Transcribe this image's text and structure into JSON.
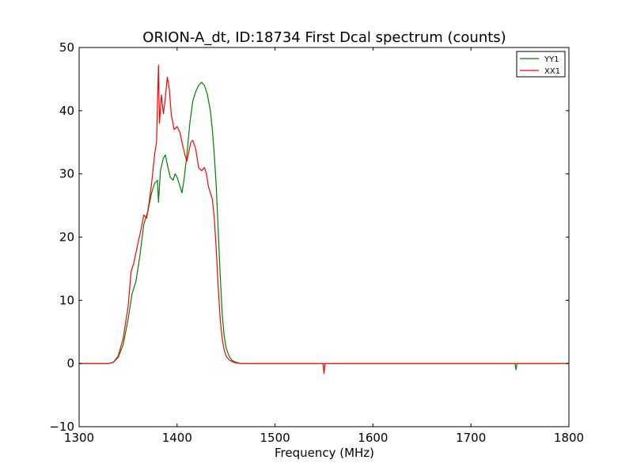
{
  "chart_data": {
    "type": "line",
    "title": "ORION-A_dt, ID:18734 First Dcal spectrum (counts)",
    "xlabel": "Frequency (MHz)",
    "ylabel": "",
    "xlim": [
      1300,
      1800
    ],
    "ylim": [
      -10,
      50
    ],
    "xticks": [
      "1300",
      "1400",
      "1500",
      "1600",
      "1700",
      "1800"
    ],
    "yticks": [
      "−10",
      "0",
      "10",
      "20",
      "30",
      "40",
      "50"
    ],
    "grid": false,
    "legend_position": "top-right",
    "series": [
      {
        "name": "YY1",
        "color": "#008000",
        "points": [
          [
            1300,
            0
          ],
          [
            1330,
            0
          ],
          [
            1335,
            0.2
          ],
          [
            1340,
            1
          ],
          [
            1345,
            3
          ],
          [
            1350,
            7
          ],
          [
            1354,
            11
          ],
          [
            1358,
            13
          ],
          [
            1362,
            17
          ],
          [
            1366,
            22
          ],
          [
            1370,
            24
          ],
          [
            1374,
            27
          ],
          [
            1377,
            28.5
          ],
          [
            1380,
            29
          ],
          [
            1381,
            25.5
          ],
          [
            1383,
            30.5
          ],
          [
            1386,
            32.5
          ],
          [
            1388,
            33
          ],
          [
            1390,
            31.5
          ],
          [
            1393,
            29.5
          ],
          [
            1396,
            29
          ],
          [
            1398,
            30
          ],
          [
            1400,
            29.5
          ],
          [
            1402,
            28.5
          ],
          [
            1405,
            27
          ],
          [
            1407,
            29
          ],
          [
            1410,
            33
          ],
          [
            1413,
            38
          ],
          [
            1416,
            41.5
          ],
          [
            1419,
            43
          ],
          [
            1422,
            44
          ],
          [
            1425,
            44.5
          ],
          [
            1428,
            44
          ],
          [
            1431,
            42.5
          ],
          [
            1434,
            40
          ],
          [
            1436,
            37
          ],
          [
            1438,
            33
          ],
          [
            1440,
            28
          ],
          [
            1442,
            21
          ],
          [
            1444,
            14
          ],
          [
            1446,
            8
          ],
          [
            1448,
            4.5
          ],
          [
            1450,
            2.5
          ],
          [
            1453,
            1.2
          ],
          [
            1456,
            0.5
          ],
          [
            1460,
            0.2
          ],
          [
            1465,
            0
          ],
          [
            1745,
            0
          ],
          [
            1746,
            -1
          ],
          [
            1747,
            0
          ],
          [
            1800,
            0
          ]
        ]
      },
      {
        "name": "XX1",
        "color": "#ff0000",
        "points": [
          [
            1300,
            0
          ],
          [
            1330,
            0
          ],
          [
            1335,
            0.2
          ],
          [
            1340,
            1.2
          ],
          [
            1345,
            4
          ],
          [
            1350,
            9
          ],
          [
            1353,
            14.5
          ],
          [
            1356,
            16
          ],
          [
            1360,
            19
          ],
          [
            1363,
            21
          ],
          [
            1366,
            23.5
          ],
          [
            1369,
            23
          ],
          [
            1371,
            25
          ],
          [
            1374,
            28.5
          ],
          [
            1377,
            33
          ],
          [
            1379,
            35
          ],
          [
            1381,
            47.2
          ],
          [
            1382,
            38
          ],
          [
            1384,
            42.5
          ],
          [
            1386,
            39.5
          ],
          [
            1388,
            42
          ],
          [
            1390,
            45.3
          ],
          [
            1392,
            43.5
          ],
          [
            1394,
            39.5
          ],
          [
            1397,
            37
          ],
          [
            1400,
            37.5
          ],
          [
            1403,
            36.5
          ],
          [
            1405,
            35
          ],
          [
            1408,
            33
          ],
          [
            1410,
            32
          ],
          [
            1412,
            33.5
          ],
          [
            1414,
            35
          ],
          [
            1416,
            35.3
          ],
          [
            1419,
            34
          ],
          [
            1422,
            31
          ],
          [
            1425,
            30.5
          ],
          [
            1428,
            31
          ],
          [
            1430,
            30
          ],
          [
            1432,
            28
          ],
          [
            1434,
            27
          ],
          [
            1436,
            26
          ],
          [
            1438,
            23
          ],
          [
            1440,
            18
          ],
          [
            1442,
            12
          ],
          [
            1444,
            7
          ],
          [
            1446,
            4
          ],
          [
            1448,
            2.2
          ],
          [
            1450,
            1.2
          ],
          [
            1453,
            0.6
          ],
          [
            1456,
            0.3
          ],
          [
            1460,
            0.1
          ],
          [
            1465,
            0
          ],
          [
            1549,
            0
          ],
          [
            1550,
            -1.6
          ],
          [
            1551,
            0
          ],
          [
            1800,
            0
          ]
        ]
      }
    ]
  }
}
